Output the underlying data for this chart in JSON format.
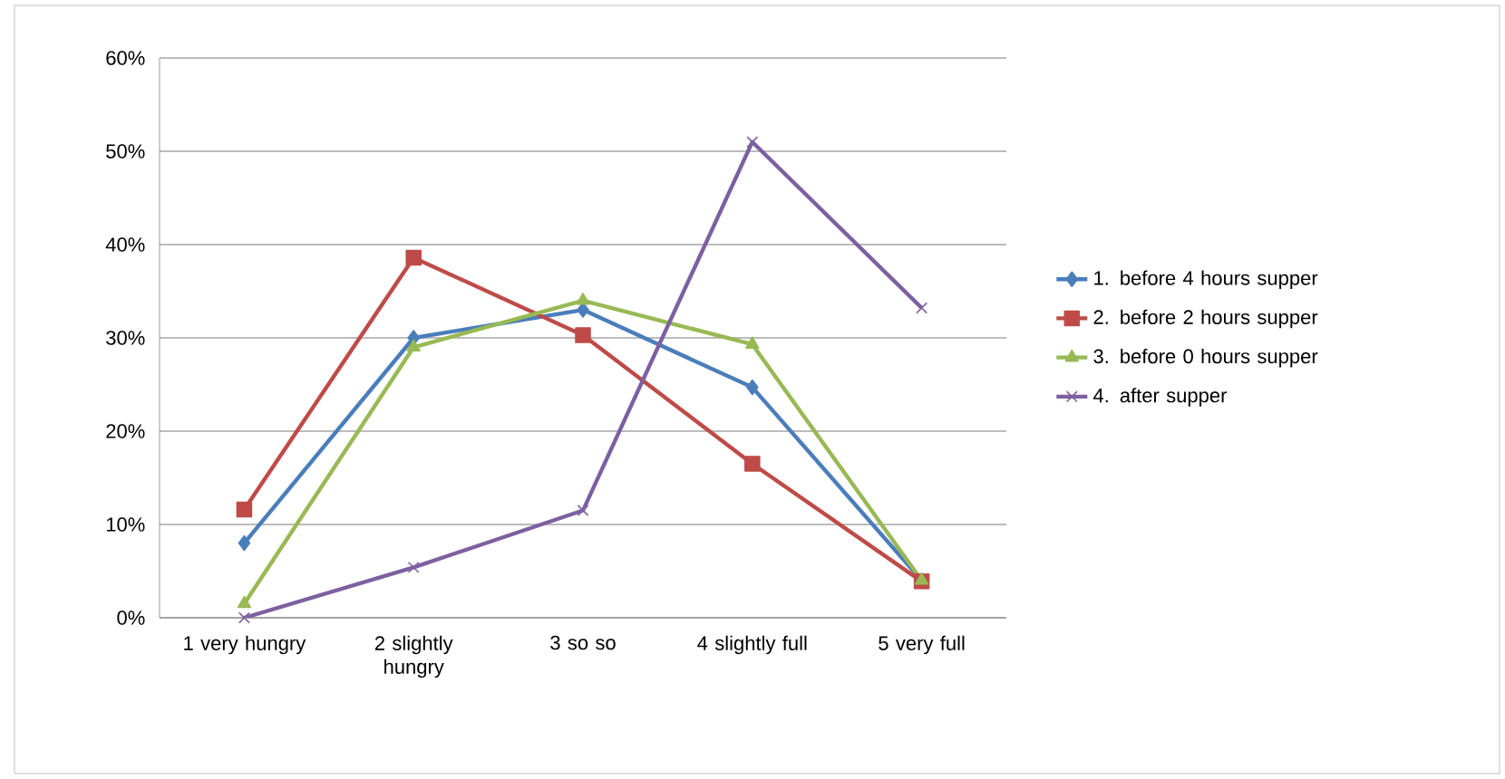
{
  "chart_data": {
    "type": "line",
    "categories": [
      "1 very hungry",
      "2 slightly hungry",
      "3 so so",
      "4 slightly full",
      "5 very full"
    ],
    "series": [
      {
        "name": "1. before 4 hours supper",
        "color": "#4a7ebb",
        "marker": "diamond",
        "values": [
          8,
          30,
          33,
          24.7,
          4
        ]
      },
      {
        "name": "2. before 2 hours supper",
        "color": "#be4b48",
        "marker": "square",
        "values": [
          11.6,
          38.6,
          30.3,
          16.5,
          3.9
        ]
      },
      {
        "name": "3. before 0 hours supper",
        "color": "#98b954",
        "marker": "triangle",
        "values": [
          1.5,
          29,
          34,
          29.3,
          4
        ]
      },
      {
        "name": "4. after supper",
        "color": "#7d60a0",
        "marker": "cross",
        "values": [
          0,
          5.4,
          11.5,
          51,
          33.2
        ]
      }
    ],
    "ylim": [
      0,
      60
    ],
    "yticks": [
      {
        "value": 0,
        "label": "0%"
      },
      {
        "value": 10,
        "label": "10%"
      },
      {
        "value": 20,
        "label": "20%"
      },
      {
        "value": 30,
        "label": "30%"
      },
      {
        "value": 40,
        "label": "40%"
      },
      {
        "value": 50,
        "label": "50%"
      },
      {
        "value": 60,
        "label": "60%"
      }
    ],
    "grid": "y",
    "legend": "right"
  }
}
